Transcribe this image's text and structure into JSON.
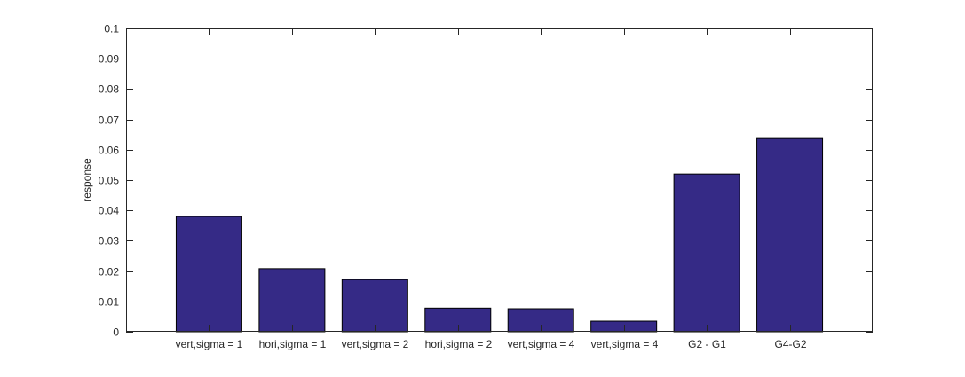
{
  "chart_data": {
    "type": "bar",
    "categories": [
      "vert,sigma = 1",
      "hori,sigma = 1",
      "vert,sigma = 2",
      "hori,sigma = 2",
      "vert,sigma = 4",
      "vert,sigma = 4",
      "G2 - G1",
      "G4-G2"
    ],
    "values": [
      0.038,
      0.0208,
      0.0172,
      0.0078,
      0.0076,
      0.0035,
      0.052,
      0.0637
    ],
    "xlabel": "",
    "ylabel": "response",
    "ylim": [
      0,
      0.1
    ],
    "yticks": [
      0,
      0.01,
      0.02,
      0.03,
      0.04,
      0.05,
      0.06,
      0.07,
      0.08,
      0.09,
      0.1
    ],
    "ytick_labels": [
      "0",
      "0.01",
      "0.02",
      "0.03",
      "0.04",
      "0.05",
      "0.06",
      "0.07",
      "0.08",
      "0.09",
      "0.1"
    ],
    "grid": false,
    "colors": {
      "bar_fill": "#352a86",
      "bar_edge": "#000000",
      "axis": "#262626"
    }
  }
}
